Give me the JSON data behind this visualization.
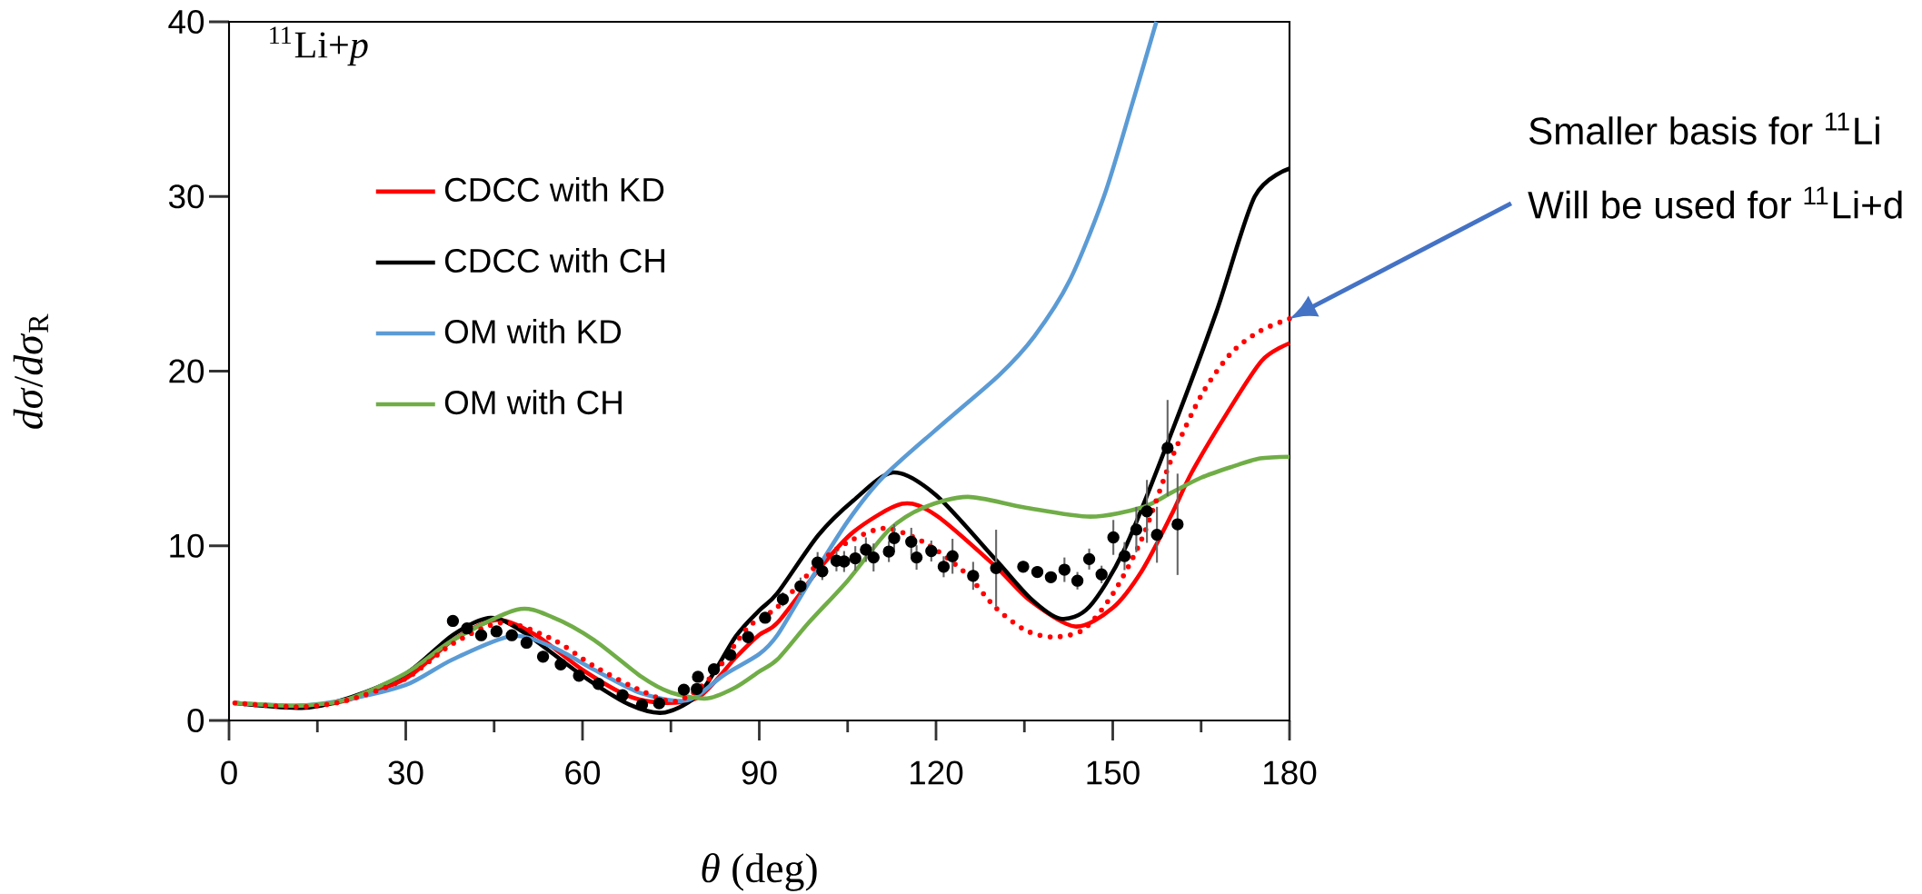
{
  "chart_data": {
    "type": "line",
    "xlabel": "*θ* (deg)",
    "ylabel": "*dσ*/*dσ*$_{R}$",
    "xlim": [
      0,
      180
    ],
    "ylim": [
      0,
      40
    ],
    "xticks": [
      0,
      30,
      60,
      90,
      120,
      150,
      180
    ],
    "yticks": [
      0,
      10,
      20,
      30,
      40
    ],
    "legend": "top left",
    "annotations": [
      "$^{11}$Li+*p*",
      "Smaller basis for $^{11}$Li",
      "Will be used for $^{11}$Li+d"
    ],
    "series": [
      {
        "name": "CDCC with KD",
        "color": "#ff0000",
        "type": "line",
        "x": [
          1,
          12,
          20,
          30,
          38,
          45.4,
          52,
          60,
          68,
          74.5,
          80,
          86,
          90,
          93.1,
          100,
          106,
          114.2,
          120,
          130,
          136,
          143.6,
          150,
          155,
          160,
          163.4,
          169.4,
          175.3,
          180
        ],
        "values": [
          1.0,
          0.78,
          1.15,
          2.4,
          4.6,
          5.75,
          4.9,
          2.9,
          1.37,
          1.0,
          1.4,
          3.6,
          4.9,
          5.6,
          8.6,
          10.8,
          12.4,
          11.75,
          8.85,
          6.85,
          5.38,
          6.45,
          8.6,
          11.8,
          14.2,
          17.6,
          20.6,
          21.6
        ]
      },
      {
        "name": "CDCC with CH",
        "color": "#000000",
        "type": "line",
        "x": [
          1,
          12.3,
          20,
          30,
          38,
          44.4,
          50,
          60,
          68,
          74,
          80,
          86,
          90,
          93.1,
          100,
          106,
          112.7,
          120,
          130,
          136,
          141.1,
          146,
          152,
          160,
          167.6,
          174.1,
          180
        ],
        "values": [
          1.0,
          0.72,
          1.25,
          2.67,
          4.9,
          5.88,
          5.05,
          2.56,
          0.9,
          0.46,
          1.6,
          4.8,
          6.3,
          7.3,
          10.6,
          12.6,
          14.2,
          12.9,
          9.25,
          7.0,
          5.83,
          6.5,
          9.8,
          16.5,
          23.4,
          30.0,
          31.6
        ]
      },
      {
        "name": "OM with KD",
        "color": "#5b9bd5",
        "type": "line",
        "x": [
          1,
          12,
          20,
          30,
          38,
          48,
          55,
          62,
          70,
          77.8,
          84,
          90,
          93.1,
          98.4,
          105,
          111.2,
          121.9,
          130.8,
          136.7,
          142.7,
          148.5,
          153.3,
          157.4
        ],
        "values": [
          1.0,
          0.85,
          1.2,
          2.03,
          3.5,
          4.84,
          4.19,
          2.9,
          1.55,
          1.15,
          2.6,
          3.8,
          4.9,
          7.87,
          11.4,
          14.0,
          17.2,
          19.8,
          22.0,
          25.2,
          30.0,
          35.3,
          40.0
        ]
      },
      {
        "name": "OM with CH",
        "color": "#70ad47",
        "type": "line",
        "x": [
          1,
          12,
          20,
          30,
          38,
          48.9,
          55,
          62,
          70,
          75,
          81.1,
          86,
          90,
          93.1,
          98.4,
          105,
          112,
          118,
          125.4,
          135,
          146.2,
          155,
          160,
          165,
          170,
          175,
          180
        ],
        "values": [
          1.0,
          0.85,
          1.2,
          2.7,
          4.6,
          6.35,
          5.9,
          4.6,
          2.5,
          1.6,
          1.26,
          1.9,
          2.8,
          3.5,
          5.6,
          8.0,
          10.9,
          12.2,
          12.8,
          12.2,
          11.67,
          12.2,
          13.05,
          13.9,
          14.5,
          15.0,
          15.1
        ]
      },
      {
        "color": "#ff0000",
        "type": "line",
        "line_style": "dotted",
        "x": [
          1,
          12,
          20,
          30,
          38,
          46.5,
          55,
          62,
          70,
          76,
          82,
          88,
          93.1,
          100,
          105,
          111.2,
          118,
          125,
          130,
          135,
          139.7,
          145,
          150,
          155,
          160,
          165,
          170,
          175,
          180
        ],
        "values": [
          1.0,
          0.78,
          1.15,
          2.4,
          4.4,
          5.6,
          4.63,
          3.1,
          1.7,
          1.1,
          2.54,
          5.3,
          6.5,
          8.97,
          10.2,
          11.0,
          10.2,
          8.44,
          6.5,
          5.2,
          4.78,
          5.2,
          7.24,
          10.45,
          15.0,
          18.6,
          21.0,
          22.3,
          23.0
        ]
      },
      {
        "color": "#000000",
        "type": "scatter",
        "marker": "circle",
        "x": [
          38.0,
          40.4,
          42.8,
          45.4,
          48.0,
          50.5,
          53.3,
          56.3,
          59.4,
          62.7,
          66.8,
          70.1,
          73.0,
          77.2,
          79.4,
          79.6,
          82.3,
          85.1,
          88.1,
          91.0,
          94.0,
          97.0,
          99.9,
          100.7,
          103.1,
          104.4,
          106.3,
          108.1,
          109.4,
          112.0,
          112.9,
          115.8,
          116.7,
          119.2,
          121.3,
          122.8,
          126.3,
          130.2,
          134.8,
          137.2,
          139.5,
          141.8,
          144.0,
          146.0,
          148.1,
          150.1,
          152.0,
          154.0,
          155.8,
          157.5,
          159.3,
          161.0
        ],
        "values": [
          5.7,
          5.27,
          4.88,
          5.1,
          4.88,
          4.45,
          3.65,
          3.21,
          2.56,
          2.09,
          1.44,
          0.9,
          0.98,
          1.76,
          1.8,
          2.5,
          2.93,
          3.75,
          4.77,
          5.88,
          6.94,
          7.68,
          9.04,
          8.54,
          9.14,
          9.1,
          9.28,
          9.78,
          9.33,
          9.67,
          10.44,
          10.23,
          9.33,
          9.7,
          8.8,
          9.4,
          8.28,
          8.72,
          8.8,
          8.5,
          8.2,
          8.63,
          8.0,
          9.24,
          8.36,
          10.48,
          9.41,
          10.93,
          11.97,
          10.63,
          15.6,
          11.23
        ],
        "errors": [
          0.3,
          0.3,
          0.3,
          0.3,
          0.3,
          0.3,
          0.3,
          0.3,
          0.3,
          0.3,
          0.3,
          0.3,
          0.3,
          0.3,
          0.3,
          0.3,
          0.3,
          0.3,
          0.3,
          0.3,
          0.4,
          0.5,
          0.6,
          0.5,
          0.6,
          0.6,
          0.7,
          0.7,
          0.8,
          0.6,
          0.8,
          0.8,
          0.7,
          0.6,
          0.6,
          1.0,
          0.8,
          2.2,
          0.3,
          0.3,
          0.3,
          0.7,
          0.5,
          0.6,
          0.5,
          1.0,
          0.8,
          1.3,
          1.8,
          1.6,
          2.75,
          2.9
        ]
      }
    ]
  }
}
